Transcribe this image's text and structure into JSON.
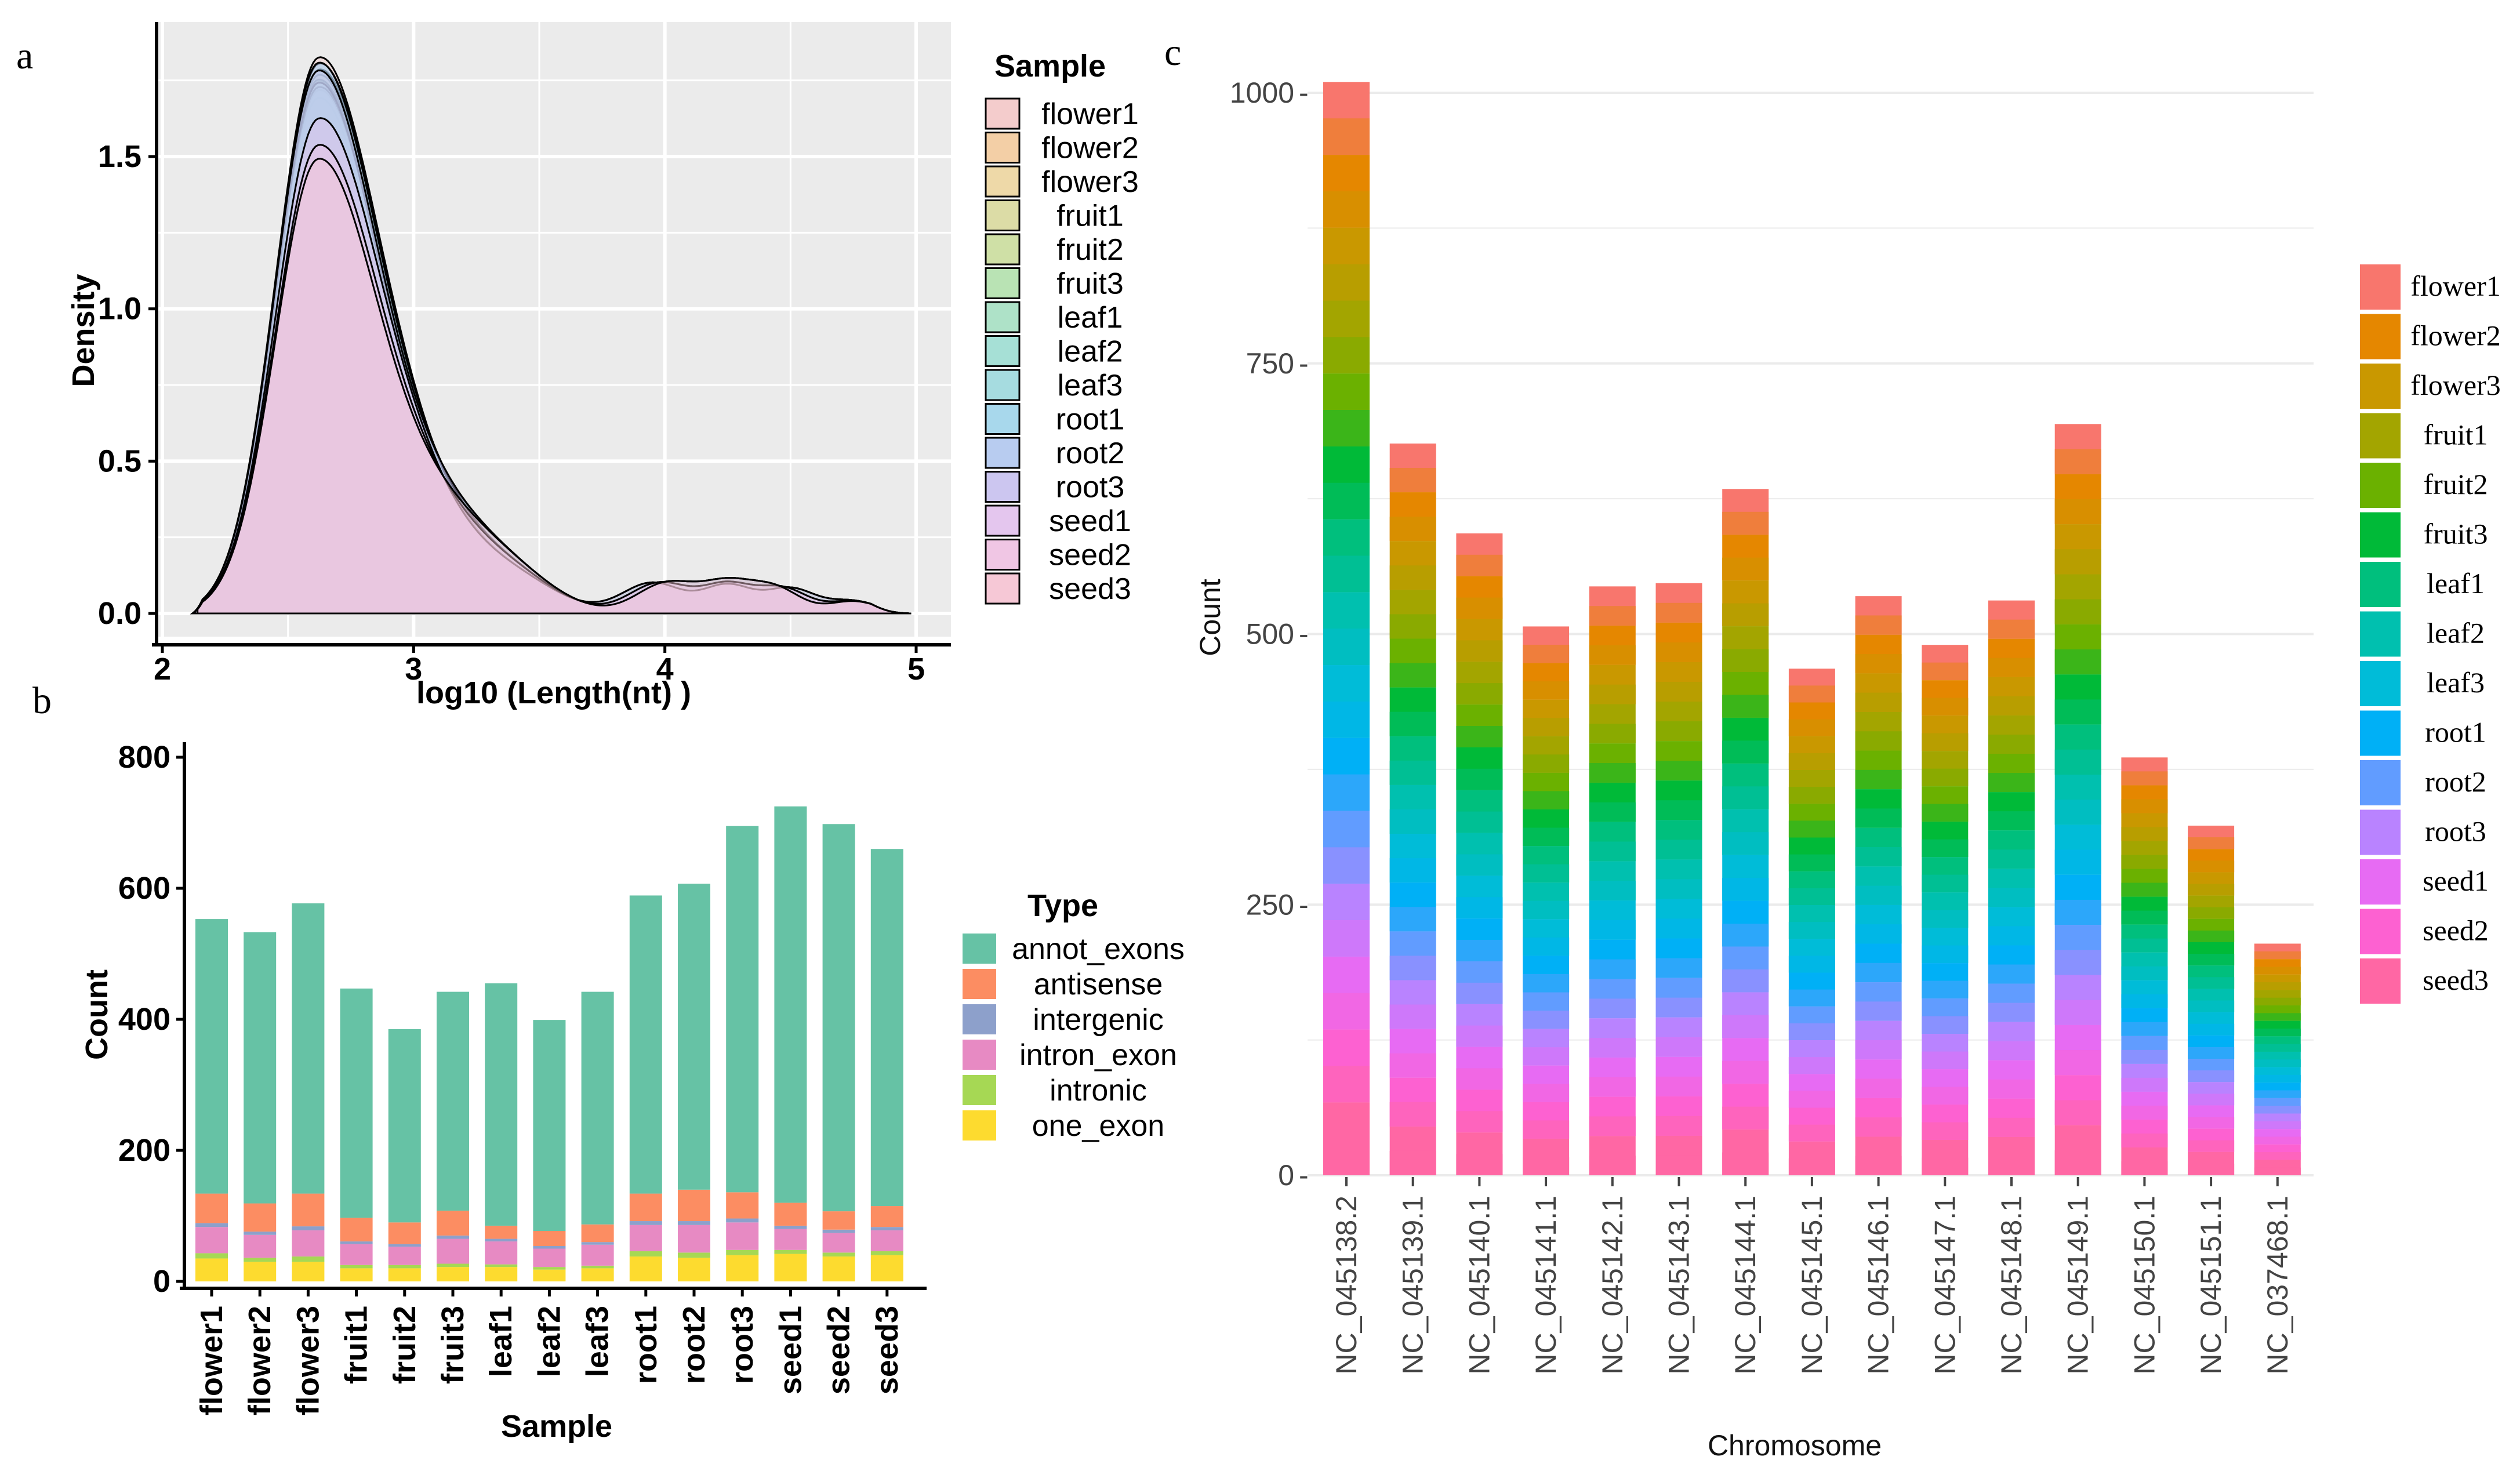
{
  "panel_labels": {
    "a": "a",
    "b": "b",
    "c": "c"
  },
  "chart_data": [
    {
      "panel": "a",
      "type": "area",
      "title": "",
      "xlabel": "log10 (Length(nt) )",
      "ylabel": "Density",
      "xlim": [
        2,
        5
      ],
      "ylim": [
        -0.05,
        1.9
      ],
      "xticks": [
        "2",
        "3",
        "4",
        "5"
      ],
      "yticks": [
        "0.0",
        "0.5",
        "1.0",
        "1.5"
      ],
      "legend_title": "Sample",
      "series": [
        {
          "name": "flower1",
          "color": "#f4cccc",
          "peak": 1.8
        },
        {
          "name": "flower2",
          "color": "#f3cfa6",
          "peak": 1.75
        },
        {
          "name": "flower3",
          "color": "#eed9a8",
          "peak": 1.68
        },
        {
          "name": "fruit1",
          "color": "#dcdca6",
          "peak": 1.72
        },
        {
          "name": "fruit2",
          "color": "#cfe0a6",
          "peak": 1.7
        },
        {
          "name": "fruit3",
          "color": "#b9e3b4",
          "peak": 1.74
        },
        {
          "name": "leaf1",
          "color": "#aee2c8",
          "peak": 1.76
        },
        {
          "name": "leaf2",
          "color": "#a6e0d6",
          "peak": 1.71
        },
        {
          "name": "leaf3",
          "color": "#a6dce0",
          "peak": 1.73
        },
        {
          "name": "root1",
          "color": "#a8d8ec",
          "peak": 1.78
        },
        {
          "name": "root2",
          "color": "#b8ccf0",
          "peak": 1.79
        },
        {
          "name": "root3",
          "color": "#ccc6f0",
          "peak": 1.77
        },
        {
          "name": "seed1",
          "color": "#e4c6ee",
          "peak": 1.6
        },
        {
          "name": "seed2",
          "color": "#f0c6e4",
          "peak": 1.52
        },
        {
          "name": "seed3",
          "color": "#f6c8d6",
          "peak": 1.48
        }
      ]
    },
    {
      "panel": "b",
      "type": "bar",
      "stacked": true,
      "title": "",
      "xlabel": "Sample",
      "ylabel": "Count",
      "ylim": [
        0,
        800
      ],
      "yticks": [
        "0",
        "200",
        "400",
        "600",
        "800"
      ],
      "legend_title": "Type",
      "categories": [
        "flower1",
        "flower2",
        "flower3",
        "fruit1",
        "fruit2",
        "fruit3",
        "leaf1",
        "leaf2",
        "leaf3",
        "root1",
        "root2",
        "root3",
        "seed1",
        "seed2",
        "seed3"
      ],
      "series": [
        {
          "name": "one_exon",
          "color": "#fddb2f",
          "values": [
            35,
            30,
            30,
            20,
            20,
            22,
            22,
            18,
            20,
            38,
            36,
            40,
            42,
            38,
            40
          ]
        },
        {
          "name": "intronic",
          "color": "#a6d854",
          "values": [
            8,
            6,
            8,
            5,
            5,
            5,
            4,
            4,
            4,
            8,
            8,
            8,
            6,
            6,
            6
          ]
        },
        {
          "name": "intron_exon",
          "color": "#e78ac3",
          "values": [
            40,
            35,
            40,
            32,
            28,
            38,
            35,
            28,
            32,
            40,
            42,
            42,
            32,
            30,
            32
          ]
        },
        {
          "name": "intergenic",
          "color": "#8da0cb",
          "values": [
            6,
            5,
            6,
            4,
            4,
            5,
            4,
            4,
            4,
            6,
            6,
            6,
            5,
            5,
            5
          ]
        },
        {
          "name": "antisense",
          "color": "#fc8d62",
          "values": [
            45,
            43,
            50,
            36,
            33,
            38,
            20,
            23,
            27,
            42,
            48,
            40,
            35,
            28,
            32
          ]
        },
        {
          "name": "annot_exons",
          "color": "#66c2a5",
          "values": [
            419,
            414,
            443,
            350,
            295,
            334,
            370,
            322,
            355,
            455,
            467,
            559,
            605,
            591,
            545
          ]
        }
      ],
      "legend_order": [
        "annot_exons",
        "antisense",
        "intergenic",
        "intron_exon",
        "intronic",
        "one_exon"
      ]
    },
    {
      "panel": "c",
      "type": "bar",
      "stacked": true,
      "title": "",
      "xlabel": "Chromosome",
      "ylabel": "Count",
      "ylim": [
        0,
        1020
      ],
      "yticks": [
        "0",
        "250",
        "500",
        "750",
        "1000"
      ],
      "categories": [
        "NC_045138.2",
        "NC_045139.1",
        "NC_045140.1",
        "NC_045141.1",
        "NC_045142.1",
        "NC_045143.1",
        "NC_045144.1",
        "NC_045145.1",
        "NC_045146.1",
        "NC_045147.1",
        "NC_045148.1",
        "NC_045149.1",
        "NC_045150.1",
        "NC_045151.1",
        "NC_037468.1"
      ],
      "totals": [
        1010,
        676,
        593,
        507,
        544,
        547,
        634,
        468,
        535,
        490,
        531,
        694,
        386,
        323,
        214
      ],
      "series": [
        {
          "name": "flower1",
          "color": "#f8766d"
        },
        {
          "name": "flower2",
          "color": "#e58700"
        },
        {
          "name": "flower3",
          "color": "#c99800"
        },
        {
          "name": "fruit1",
          "color": "#a3a500"
        },
        {
          "name": "fruit2",
          "color": "#6bb100"
        },
        {
          "name": "fruit3",
          "color": "#00ba38"
        },
        {
          "name": "leaf1",
          "color": "#00bf7d"
        },
        {
          "name": "leaf2",
          "color": "#00c0af"
        },
        {
          "name": "leaf3",
          "color": "#00bcd8"
        },
        {
          "name": "root1",
          "color": "#00b0f6"
        },
        {
          "name": "root2",
          "color": "#619cff"
        },
        {
          "name": "root3",
          "color": "#b983ff"
        },
        {
          "name": "seed1",
          "color": "#e76bf3"
        },
        {
          "name": "seed2",
          "color": "#fd61d1"
        },
        {
          "name": "seed3",
          "color": "#ff67a4"
        }
      ]
    }
  ]
}
